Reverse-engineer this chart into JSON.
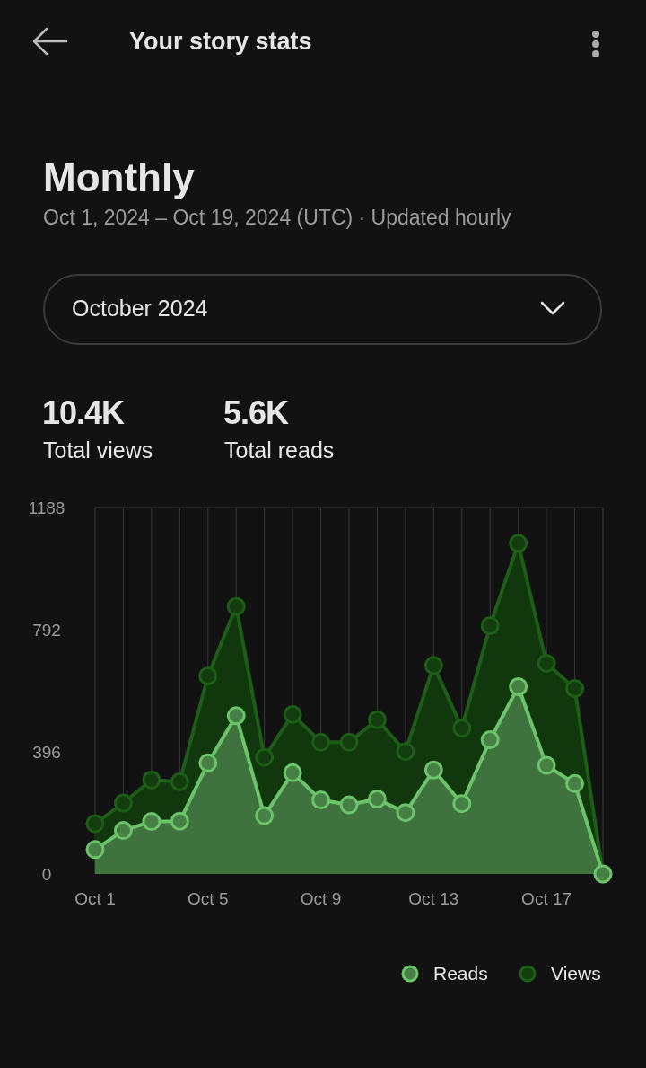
{
  "chart_data": {
    "type": "area",
    "title": "Monthly",
    "subtitle": "Oct 1, 2024 – Oct 19, 2024 (UTC) · Updated hourly",
    "annotations": [
      "Your story stats",
      "October 2024",
      "10.4K",
      "Total views",
      "5.6K",
      "Total reads"
    ],
    "categories": [
      "Oct 1",
      null,
      null,
      null,
      "Oct 5",
      null,
      null,
      null,
      "Oct 9",
      null,
      null,
      null,
      "Oct 13",
      null,
      null,
      null,
      "Oct 17",
      null,
      null
    ],
    "series": [
      {
        "name": "Views",
        "color": "#1d5e17",
        "values": [
          163,
          230,
          305,
          299,
          642,
          867,
          378,
          517,
          427,
          427,
          500,
          397,
          676,
          473,
          805,
          1072,
          683,
          601,
          0
        ]
      },
      {
        "name": "Reads",
        "color": "#6cc46a",
        "values": [
          79,
          141,
          170,
          171,
          360,
          513,
          189,
          328,
          240,
          224,
          243,
          199,
          337,
          228,
          435,
          607,
          352,
          293,
          0
        ]
      }
    ],
    "ylim": [
      0,
      1188
    ],
    "yticks": [
      0,
      396,
      792,
      1188
    ],
    "grid": "x",
    "legend": "bottom right",
    "marker": "circle"
  }
}
